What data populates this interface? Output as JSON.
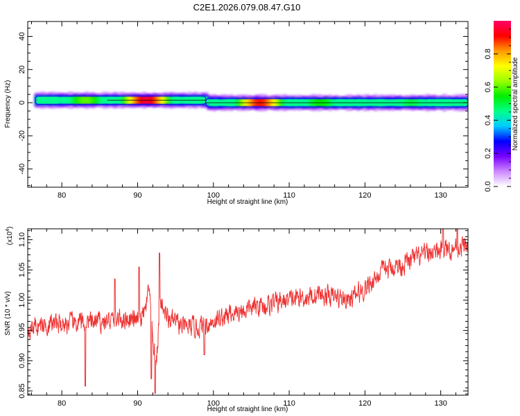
{
  "title": "C2E1.2026.079.08.47.G10",
  "chart_data": [
    {
      "type": "heatmap",
      "xlabel": "Height of straight line (km)",
      "ylabel": "Frequency (Hz)",
      "xlim": [
        75.5,
        133.6
      ],
      "ylim": [
        -51,
        49
      ],
      "xticks": [
        80,
        90,
        100,
        110,
        120,
        130
      ],
      "yticks": [
        -40,
        -20,
        0,
        20,
        40
      ],
      "band": {
        "x_start": 76.5,
        "x_end": 133.6,
        "segments": [
          {
            "x": [
              76.5,
              99
            ],
            "center_hz": 1.5,
            "half_width_hz": 2.5
          },
          {
            "x": [
              99,
              133.6
            ],
            "center_hz": 0,
            "half_width_hz": 2.5
          }
        ],
        "peaks": [
          {
            "x": 91,
            "hz": 1.5,
            "amplitude": 0.95
          },
          {
            "x": 83,
            "hz": 1.5,
            "amplitude": 0.6
          },
          {
            "x": 106,
            "hz": 0,
            "amplitude": 0.9
          },
          {
            "x": 114,
            "hz": 0,
            "amplitude": 0.55
          },
          {
            "x": 126,
            "hz": 0.5,
            "amplitude": 0.5
          }
        ]
      },
      "colorbar": {
        "label": "Normalized spectral amplitude",
        "range": [
          0,
          1
        ],
        "ticks": [
          "0.0",
          "0.2",
          "0.4",
          "0.6",
          "0.8"
        ],
        "tick_values": [
          0,
          0.2,
          0.4,
          0.6,
          0.8
        ],
        "colors": [
          "#ffffff",
          "#cc88ff",
          "#7700ff",
          "#0000ff",
          "#00ccff",
          "#00ff88",
          "#00ee00",
          "#99ff00",
          "#ffff00",
          "#ff9900",
          "#ff0000",
          "#ff0066"
        ]
      }
    },
    {
      "type": "line",
      "xlabel": "Height of straight line (km)",
      "ylabel": "SNR (10 * v/v)",
      "multiplier": "(x10",
      "multiplier_exp": "4",
      "multiplier_close": ")",
      "xlim": [
        75.5,
        133.6
      ],
      "ylim": [
        0.843,
        1.118
      ],
      "xticks": [
        80,
        90,
        100,
        110,
        120,
        130
      ],
      "yticks": [
        "0.85",
        "0.90",
        "0.95",
        "1.00",
        "1.05",
        "1.10"
      ],
      "ytick_values": [
        0.85,
        0.9,
        0.95,
        1.0,
        1.05,
        1.1
      ],
      "color": "#ee3333",
      "trend": {
        "x": [
          75.5,
          78,
          82,
          86,
          88,
          89,
          90,
          91,
          91.5,
          92,
          92.5,
          93,
          94,
          96,
          98,
          100,
          103,
          106,
          110,
          114,
          118,
          120,
          122,
          125,
          128,
          131,
          133.6
        ],
        "y": [
          0.955,
          0.96,
          0.962,
          0.965,
          0.97,
          0.97,
          0.965,
          0.98,
          1.02,
          0.93,
          0.9,
          1.0,
          0.97,
          0.955,
          0.955,
          0.965,
          0.98,
          0.99,
          1.0,
          1.01,
          1.0,
          1.02,
          1.045,
          1.06,
          1.075,
          1.085,
          1.09
        ]
      },
      "noise_amplitude": 0.018,
      "spikes": [
        {
          "x": 83.1,
          "y": 0.858
        },
        {
          "x": 92.3,
          "y": 0.846
        },
        {
          "x": 91.8,
          "y": 0.87
        },
        {
          "x": 90.2,
          "y": 1.055
        },
        {
          "x": 92.9,
          "y": 1.078
        },
        {
          "x": 87.0,
          "y": 1.035
        },
        {
          "x": 98.8,
          "y": 0.91
        },
        {
          "x": 130.3,
          "y": 1.118
        },
        {
          "x": 132.2,
          "y": 1.118
        }
      ]
    }
  ]
}
